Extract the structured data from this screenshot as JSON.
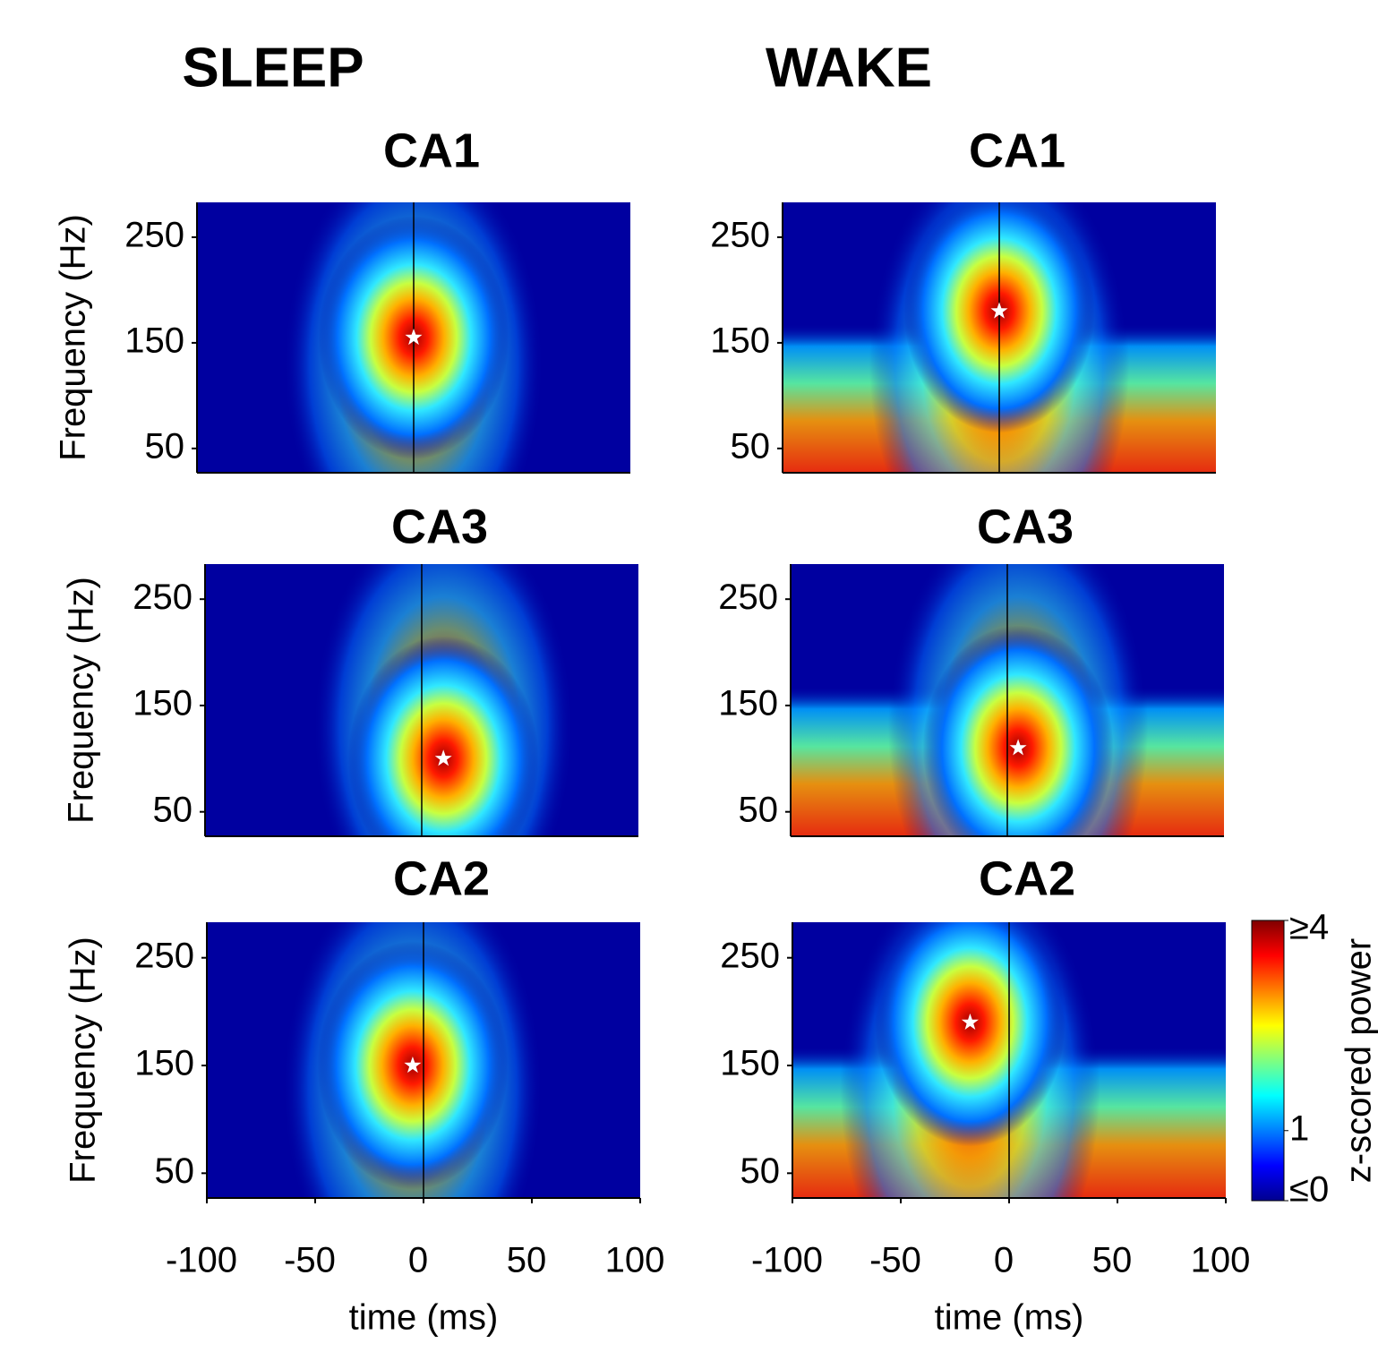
{
  "figure": {
    "columns": [
      "SLEEP",
      "WAKE"
    ],
    "colorbar": {
      "label": "z-scored power",
      "lim": [
        0,
        4
      ],
      "ticks": [
        {
          "value": 4,
          "label": "≥4"
        },
        1,
        {
          "value": 0,
          "label": "≤0"
        }
      ],
      "colormap": "jet"
    }
  },
  "chart_data": [
    {
      "type": "spectrogram",
      "title": "CA1",
      "ylabel": "Frequency (Hz)",
      "xlim": [
        -100,
        100
      ],
      "ylim": [
        27,
        283
      ],
      "yticks": [
        50,
        150,
        250
      ],
      "vline": 0,
      "peak": {
        "x": 0,
        "y": 155
      },
      "marker_color": "#ffffff"
    },
    {
      "type": "spectrogram",
      "title": "CA1",
      "xlim": [
        -100,
        100
      ],
      "ylim": [
        27,
        283
      ],
      "yticks": [
        50,
        150,
        250
      ],
      "vline": 0,
      "peak": {
        "x": 0,
        "y": 180
      },
      "marker_color": "#ffffff"
    },
    {
      "type": "spectrogram",
      "title": "CA3",
      "ylabel": "Frequency (Hz)",
      "xlim": [
        -100,
        100
      ],
      "ylim": [
        27,
        283
      ],
      "yticks": [
        50,
        150,
        250
      ],
      "vline": 0,
      "peak": {
        "x": 10,
        "y": 100
      },
      "marker_color": "#ffffff"
    },
    {
      "type": "spectrogram",
      "title": "CA3",
      "xlim": [
        -100,
        100
      ],
      "ylim": [
        27,
        283
      ],
      "yticks": [
        50,
        150,
        250
      ],
      "vline": 0,
      "peak": {
        "x": 5,
        "y": 110
      },
      "marker_color": "#ffffff"
    },
    {
      "type": "spectrogram",
      "title": "CA2",
      "ylabel": "Frequency (Hz)",
      "xlabel": "time (ms)",
      "xlim": [
        -100,
        100
      ],
      "ylim": [
        27,
        283
      ],
      "xticks": [
        -100,
        -50,
        0,
        50,
        100
      ],
      "yticks": [
        50,
        150,
        250
      ],
      "vline": 0,
      "peak": {
        "x": -5,
        "y": 150
      },
      "marker_color": "#ffffff"
    },
    {
      "type": "spectrogram",
      "title": "CA2",
      "xlabel": "time (ms)",
      "xlim": [
        -100,
        100
      ],
      "ylim": [
        27,
        283
      ],
      "xticks": [
        -100,
        -50,
        0,
        50,
        100
      ],
      "yticks": [
        50,
        150,
        250
      ],
      "vline": 0,
      "peak": {
        "x": -18,
        "y": 190
      },
      "marker_color": "#ffffff"
    }
  ]
}
